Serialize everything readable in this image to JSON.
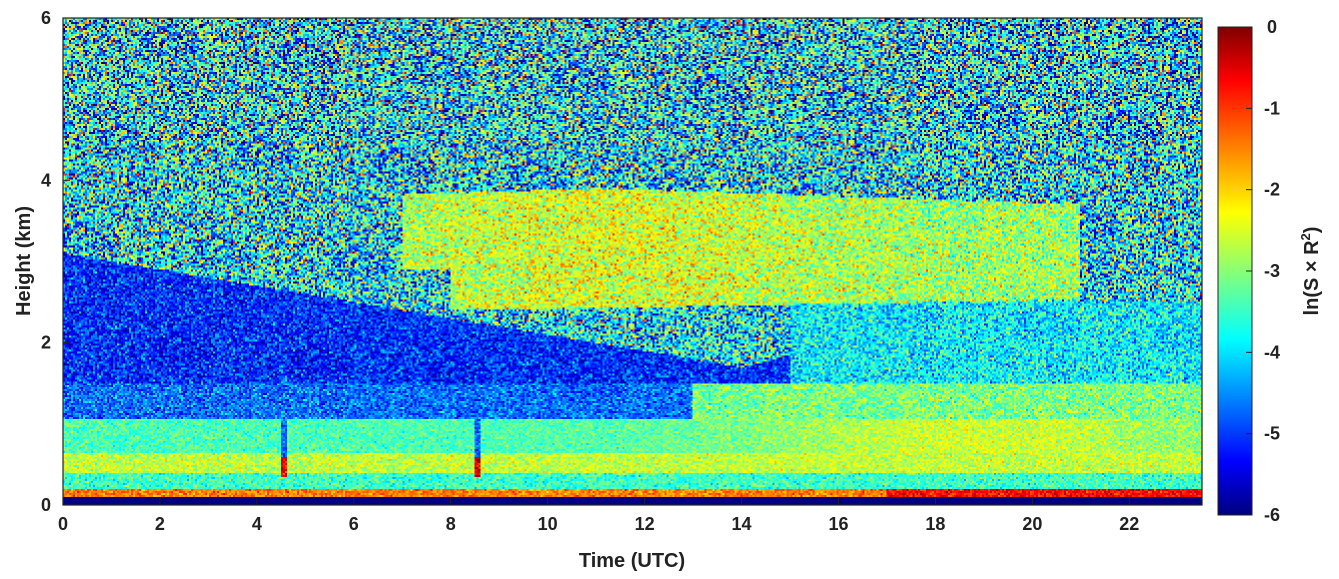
{
  "chart_data": {
    "type": "heatmap",
    "title": "",
    "xlabel": "Time (UTC)",
    "ylabel": "Height (km)",
    "xlim": [
      0,
      23.5
    ],
    "ylim": [
      0,
      6
    ],
    "x_ticks": [
      "0",
      "2",
      "4",
      "6",
      "8",
      "10",
      "12",
      "14",
      "16",
      "18",
      "20",
      "22"
    ],
    "y_ticks": [
      "0",
      "2",
      "4",
      "6"
    ],
    "colorbar": {
      "label_prefix": "ln(S × R",
      "label_sup": "2",
      "label_suffix": ")",
      "range": [
        -6,
        0
      ],
      "colormap": "jet",
      "ticks": [
        "0",
        "-1",
        "-2",
        "-3",
        "-4",
        "-5",
        "-6"
      ]
    },
    "layers": [
      {
        "name": "surface_layer",
        "height_km": [
          0.1,
          0.2
        ],
        "time_utc": [
          0,
          23.5
        ],
        "value": -0.5
      },
      {
        "name": "boundary_layer",
        "height_km": [
          0.4,
          1.0
        ],
        "time_utc": [
          0,
          23.5
        ],
        "value": -3.0
      },
      {
        "name": "elevated_aerosol_layer",
        "height_km": [
          2.3,
          4.0
        ],
        "time_utc": [
          8,
          21
        ],
        "value": -2.6
      },
      {
        "name": "clear_air_band",
        "height_km": [
          1.2,
          2.4
        ],
        "time_utc": [
          0,
          14
        ],
        "value": -5.0
      }
    ]
  }
}
